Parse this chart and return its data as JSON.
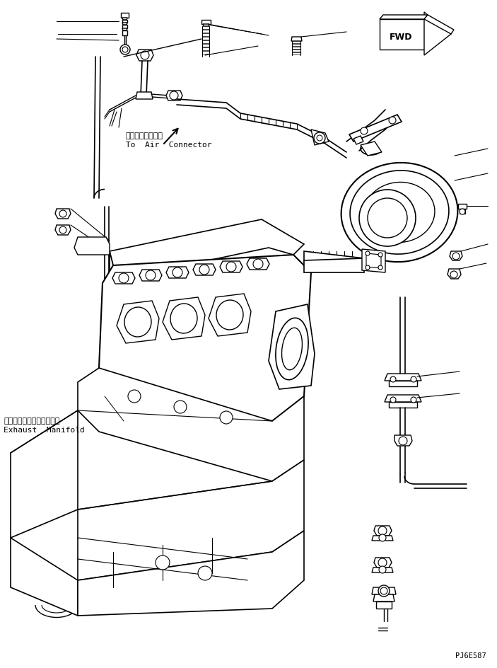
{
  "bg_color": "#ffffff",
  "line_color": "#000000",
  "fig_width": 7.03,
  "fig_height": 9.44,
  "dpi": 100,
  "label1_jp": "エアーコネクタヘ",
  "label1_en": "To  Air  Connector",
  "label2_jp": "エキゾーストマニホールド",
  "label2_en": "Exhaust  Manifold",
  "code": "PJ6E587",
  "fwd_text": "FWD"
}
